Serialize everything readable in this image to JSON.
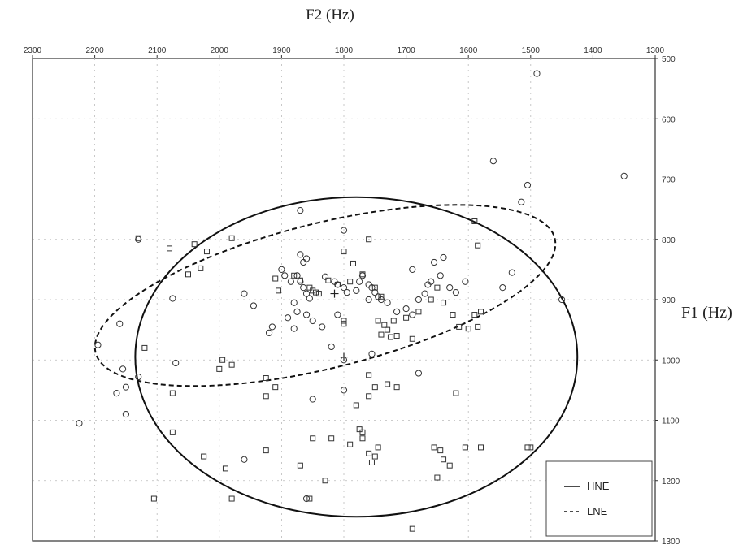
{
  "chart_data": {
    "type": "scatter",
    "title": "F2 (Hz)",
    "xlabel": "F2 (Hz)",
    "ylabel": "F1 (Hz)",
    "xlim": [
      2300,
      1300
    ],
    "ylim": [
      500,
      1300
    ],
    "x_reversed": true,
    "y_reversed": true,
    "x_ticks": [
      2300,
      2200,
      2100,
      2000,
      1900,
      1800,
      1700,
      1600,
      1500,
      1400,
      1300
    ],
    "y_ticks": [
      500,
      600,
      700,
      800,
      900,
      1000,
      1100,
      1200,
      1300
    ],
    "grid": true,
    "legend_position": "bottom-right",
    "colors": {
      "marker": "#333333",
      "ellipse": "#111111",
      "grid": "#bbbbbb"
    },
    "series": [
      {
        "name": "HNE",
        "marker": "square",
        "points": [
          [
            2130,
            798
          ],
          [
            2080,
            815
          ],
          [
            2040,
            808
          ],
          [
            2020,
            820
          ],
          [
            1980,
            798
          ],
          [
            2050,
            858
          ],
          [
            2030,
            848
          ],
          [
            2120,
            980
          ],
          [
            2075,
            1055
          ],
          [
            2075,
            1120
          ],
          [
            2025,
            1160
          ],
          [
            1995,
            1000
          ],
          [
            2000,
            1015
          ],
          [
            1980,
            1008
          ],
          [
            1990,
            1180
          ],
          [
            1980,
            1230
          ],
          [
            2105,
            1230
          ],
          [
            1925,
            1030
          ],
          [
            1910,
            1045
          ],
          [
            1925,
            1060
          ],
          [
            1925,
            1150
          ],
          [
            1910,
            865
          ],
          [
            1905,
            885
          ],
          [
            1880,
            860
          ],
          [
            1870,
            868
          ],
          [
            1855,
            880
          ],
          [
            1845,
            888
          ],
          [
            1840,
            890
          ],
          [
            1850,
            885
          ],
          [
            1825,
            868
          ],
          [
            1810,
            875
          ],
          [
            1800,
            820
          ],
          [
            1800,
            935
          ],
          [
            1800,
            940
          ],
          [
            1785,
            840
          ],
          [
            1790,
            870
          ],
          [
            1770,
            858
          ],
          [
            1760,
            800
          ],
          [
            1750,
            880
          ],
          [
            1740,
            895
          ],
          [
            1745,
            935
          ],
          [
            1730,
            950
          ],
          [
            1725,
            962
          ],
          [
            1740,
            958
          ],
          [
            1735,
            942
          ],
          [
            1720,
            935
          ],
          [
            1715,
            960
          ],
          [
            1700,
            930
          ],
          [
            1690,
            965
          ],
          [
            1680,
            920
          ],
          [
            1660,
            900
          ],
          [
            1650,
            880
          ],
          [
            1640,
            905
          ],
          [
            1625,
            925
          ],
          [
            1615,
            945
          ],
          [
            1600,
            948
          ],
          [
            1590,
            925
          ],
          [
            1585,
            945
          ],
          [
            1580,
            920
          ],
          [
            1590,
            770
          ],
          [
            1585,
            810
          ],
          [
            1760,
            1025
          ],
          [
            1750,
            1045
          ],
          [
            1730,
            1040
          ],
          [
            1715,
            1045
          ],
          [
            1760,
            1060
          ],
          [
            1780,
            1075
          ],
          [
            1775,
            1115
          ],
          [
            1770,
            1120
          ],
          [
            1770,
            1130
          ],
          [
            1790,
            1140
          ],
          [
            1760,
            1155
          ],
          [
            1755,
            1170
          ],
          [
            1745,
            1145
          ],
          [
            1750,
            1160
          ],
          [
            1655,
            1145
          ],
          [
            1645,
            1150
          ],
          [
            1640,
            1165
          ],
          [
            1630,
            1175
          ],
          [
            1650,
            1195
          ],
          [
            1620,
            1055
          ],
          [
            1605,
            1145
          ],
          [
            1580,
            1145
          ],
          [
            1505,
            1145
          ],
          [
            1850,
            1130
          ],
          [
            1820,
            1130
          ],
          [
            1870,
            1175
          ],
          [
            1830,
            1200
          ],
          [
            1690,
            1280
          ],
          [
            1855,
            1230
          ],
          [
            1500,
            1145
          ]
        ]
      },
      {
        "name": "LNE",
        "marker": "circle",
        "points": [
          [
            1490,
            525
          ],
          [
            1560,
            670
          ],
          [
            1350,
            695
          ],
          [
            1505,
            710
          ],
          [
            1515,
            738
          ],
          [
            1870,
            752
          ],
          [
            2130,
            800
          ],
          [
            2075,
            898
          ],
          [
            1960,
            890
          ],
          [
            1945,
            910
          ],
          [
            1900,
            850
          ],
          [
            1895,
            860
          ],
          [
            1885,
            870
          ],
          [
            1875,
            860
          ],
          [
            1870,
            870
          ],
          [
            1865,
            880
          ],
          [
            1860,
            890
          ],
          [
            1855,
            898
          ],
          [
            1880,
            905
          ],
          [
            1875,
            920
          ],
          [
            1860,
            925
          ],
          [
            1850,
            935
          ],
          [
            1835,
            945
          ],
          [
            1890,
            930
          ],
          [
            1915,
            945
          ],
          [
            1920,
            955
          ],
          [
            1880,
            948
          ],
          [
            1870,
            825
          ],
          [
            1860,
            832
          ],
          [
            1865,
            838
          ],
          [
            1830,
            862
          ],
          [
            1815,
            870
          ],
          [
            1810,
            875
          ],
          [
            1800,
            880
          ],
          [
            1795,
            888
          ],
          [
            1780,
            885
          ],
          [
            1775,
            870
          ],
          [
            1770,
            860
          ],
          [
            1760,
            875
          ],
          [
            1755,
            880
          ],
          [
            1750,
            888
          ],
          [
            1745,
            895
          ],
          [
            1740,
            900
          ],
          [
            1760,
            900
          ],
          [
            1730,
            905
          ],
          [
            1715,
            920
          ],
          [
            1700,
            915
          ],
          [
            1690,
            925
          ],
          [
            1680,
            900
          ],
          [
            1670,
            890
          ],
          [
            1665,
            875
          ],
          [
            1660,
            870
          ],
          [
            1645,
            860
          ],
          [
            1630,
            880
          ],
          [
            1620,
            888
          ],
          [
            1605,
            870
          ],
          [
            1690,
            850
          ],
          [
            1655,
            838
          ],
          [
            1640,
            830
          ],
          [
            1800,
            785
          ],
          [
            1810,
            925
          ],
          [
            1820,
            978
          ],
          [
            1755,
            990
          ],
          [
            1680,
            1022
          ],
          [
            1800,
            1050
          ],
          [
            1850,
            1065
          ],
          [
            1960,
            1165
          ],
          [
            1860,
            1230
          ],
          [
            2160,
            940
          ],
          [
            2195,
            975
          ],
          [
            2155,
            1015
          ],
          [
            2150,
            1045
          ],
          [
            2130,
            1028
          ],
          [
            2165,
            1055
          ],
          [
            2150,
            1090
          ],
          [
            2225,
            1105
          ],
          [
            2070,
            1005
          ],
          [
            1450,
            900
          ],
          [
            1530,
            855
          ],
          [
            1545,
            880
          ],
          [
            1800,
            1000
          ]
        ]
      }
    ],
    "ellipses": [
      {
        "name": "HNE",
        "style": "solid",
        "center": [
          1780,
          995
        ],
        "semi_axis_f2": 355,
        "semi_axis_f1": 265,
        "rotation_deg": 0
      },
      {
        "name": "LNE",
        "style": "dashed",
        "center": [
          1830,
          893
        ],
        "semi_axis_f2": 380,
        "semi_axis_f1": 120,
        "rotation_deg": 14
      }
    ],
    "centroids": [
      {
        "name": "HNE",
        "f2": 1800,
        "f1": 995
      },
      {
        "name": "LNE",
        "f2": 1815,
        "f1": 890
      }
    ]
  },
  "labels": {
    "top": "F2 (Hz)",
    "side": "F1 (Hz)"
  },
  "legend": [
    {
      "name": "HNE",
      "style": "solid"
    },
    {
      "name": "LNE",
      "style": "dashed"
    }
  ]
}
